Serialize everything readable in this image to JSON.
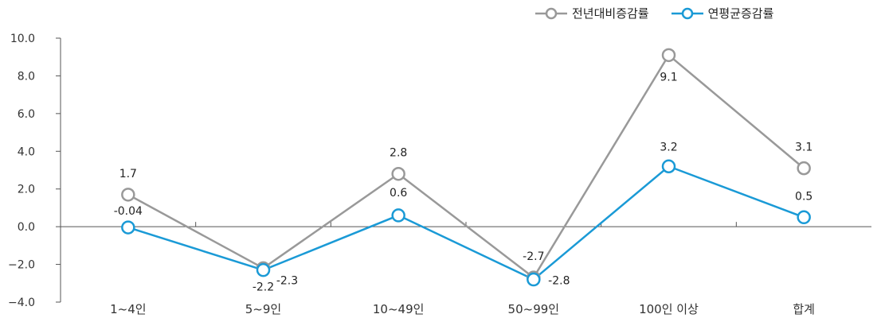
{
  "chart_data": {
    "type": "line",
    "categories": [
      "1~4인",
      "5~9인",
      "10~49인",
      "50~99인",
      "100인 이상",
      "합계"
    ],
    "series": [
      {
        "name": "전년대비증감률",
        "color": "#999999",
        "values": [
          1.7,
          -2.2,
          2.8,
          -2.7,
          9.1,
          3.1
        ],
        "labels": [
          "1.7",
          "-2.2",
          "2.8",
          "-2.7",
          "9.1",
          "3.1"
        ]
      },
      {
        "name": "연평균증감률",
        "color": "#1a9ad6",
        "values": [
          -0.04,
          -2.3,
          0.6,
          -2.8,
          3.2,
          0.5
        ],
        "labels": [
          "-0.04",
          "-2.3",
          "0.6",
          "-2.8",
          "3.2",
          "0.5"
        ]
      }
    ],
    "yticks": [
      "10.0",
      "8.0",
      "6.0",
      "4.0",
      "2.0",
      "0.0",
      "−2.0",
      "−4.0"
    ],
    "ylim": [
      -4,
      10
    ],
    "legend": "top-right",
    "grid": false
  }
}
